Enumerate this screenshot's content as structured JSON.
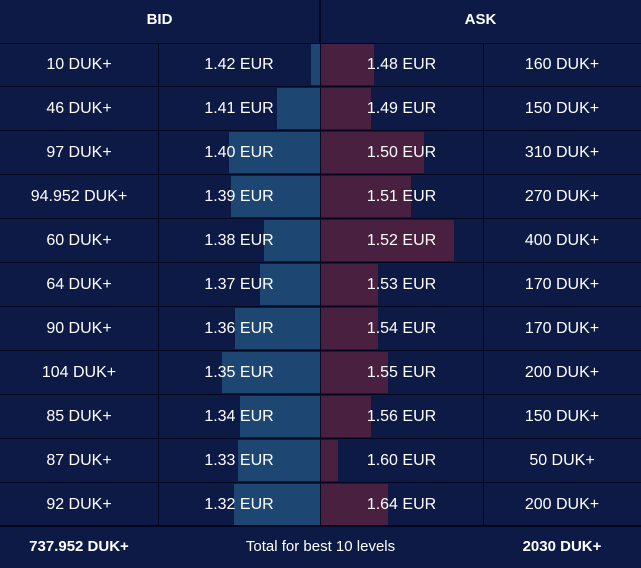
{
  "header": {
    "bid_label": "BID",
    "ask_label": "ASK"
  },
  "colors": {
    "background": "#0d1a45",
    "bid_bar": "#1d4673",
    "ask_bar": "#4a2040",
    "divider": "#03081f"
  },
  "max_bar_quantity": 400,
  "rows": [
    {
      "bid_qty": "10 DUK+",
      "bid_qty_value": 10,
      "bid_price": "1.42 EUR",
      "ask_price": "1.48 EUR",
      "ask_qty": "160 DUK+",
      "ask_qty_value": 160
    },
    {
      "bid_qty": "46 DUK+",
      "bid_qty_value": 46,
      "bid_price": "1.41 EUR",
      "ask_price": "1.49 EUR",
      "ask_qty": "150 DUK+",
      "ask_qty_value": 150
    },
    {
      "bid_qty": "97 DUK+",
      "bid_qty_value": 97,
      "bid_price": "1.40 EUR",
      "ask_price": "1.50 EUR",
      "ask_qty": "310 DUK+",
      "ask_qty_value": 310
    },
    {
      "bid_qty": "94.952 DUK+",
      "bid_qty_value": 94.952,
      "bid_price": "1.39 EUR",
      "ask_price": "1.51 EUR",
      "ask_qty": "270 DUK+",
      "ask_qty_value": 270
    },
    {
      "bid_qty": "60 DUK+",
      "bid_qty_value": 60,
      "bid_price": "1.38 EUR",
      "ask_price": "1.52 EUR",
      "ask_qty": "400 DUK+",
      "ask_qty_value": 400
    },
    {
      "bid_qty": "64 DUK+",
      "bid_qty_value": 64,
      "bid_price": "1.37 EUR",
      "ask_price": "1.53 EUR",
      "ask_qty": "170 DUK+",
      "ask_qty_value": 170
    },
    {
      "bid_qty": "90 DUK+",
      "bid_qty_value": 90,
      "bid_price": "1.36 EUR",
      "ask_price": "1.54 EUR",
      "ask_qty": "170 DUK+",
      "ask_qty_value": 170
    },
    {
      "bid_qty": "104 DUK+",
      "bid_qty_value": 104,
      "bid_price": "1.35 EUR",
      "ask_price": "1.55 EUR",
      "ask_qty": "200 DUK+",
      "ask_qty_value": 200
    },
    {
      "bid_qty": "85 DUK+",
      "bid_qty_value": 85,
      "bid_price": "1.34 EUR",
      "ask_price": "1.56 EUR",
      "ask_qty": "150 DUK+",
      "ask_qty_value": 150
    },
    {
      "bid_qty": "87 DUK+",
      "bid_qty_value": 87,
      "bid_price": "1.33 EUR",
      "ask_price": "1.60 EUR",
      "ask_qty": "50 DUK+",
      "ask_qty_value": 50
    },
    {
      "bid_qty": "92 DUK+",
      "bid_qty_value": 92,
      "bid_price": "1.32 EUR",
      "ask_price": "1.64 EUR",
      "ask_qty": "200 DUK+",
      "ask_qty_value": 200
    }
  ],
  "footer": {
    "bid_total": "737.952 DUK+",
    "label": "Total for best 10 levels",
    "ask_total": "2030 DUK+"
  }
}
